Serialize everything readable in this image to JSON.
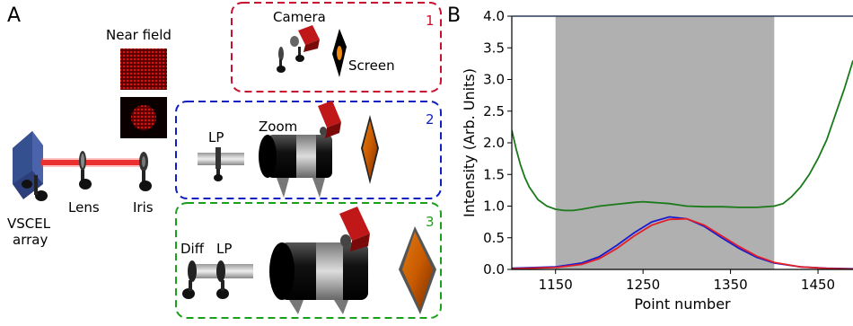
{
  "panel_a": {
    "label": "A",
    "near_field_title": "Near field",
    "labels": {
      "vscel_line1": "VSCEL",
      "vscel_line2": "array",
      "lens": "Lens",
      "iris": "Iris",
      "camera": "Camera",
      "screen": "Screen",
      "lp_top": "LP",
      "zoom": "Zoom",
      "diff": "Diff",
      "lp_bottom": "LP"
    },
    "setups": [
      {
        "number": "1",
        "color": "#c8102e"
      },
      {
        "number": "2",
        "color": "#1020c0"
      },
      {
        "number": "3",
        "color": "#1aa01a"
      }
    ]
  },
  "panel_b": {
    "label": "B"
  },
  "chart_data": {
    "type": "line",
    "xlabel": "Point number",
    "ylabel": "Intensity (Arb. Units)",
    "xlim": [
      1100,
      1490
    ],
    "ylim": [
      0,
      4.0
    ],
    "xticks": [
      "1150",
      "1250",
      "1350",
      "1450"
    ],
    "xtick_values": [
      1150,
      1250,
      1350,
      1450
    ],
    "yticks": [
      "0.0",
      "0.5",
      "1.0",
      "1.5",
      "2.0",
      "2.5",
      "3.0",
      "3.5",
      "4.0"
    ],
    "ytick_values": [
      0.0,
      0.5,
      1.0,
      1.5,
      2.0,
      2.5,
      3.0,
      3.5,
      4.0
    ],
    "shaded_region": {
      "x_start": 1150,
      "x_end": 1400,
      "color": "#b0b0b0"
    },
    "grid": false,
    "series": [
      {
        "color": "#1a7a1a",
        "x": [
          1100,
          1105,
          1110,
          1115,
          1120,
          1125,
          1130,
          1140,
          1150,
          1160,
          1170,
          1180,
          1200,
          1220,
          1240,
          1250,
          1260,
          1270,
          1280,
          1300,
          1320,
          1340,
          1360,
          1380,
          1400,
          1410,
          1420,
          1430,
          1440,
          1450,
          1460,
          1470,
          1480,
          1490
        ],
        "y": [
          2.2,
          1.9,
          1.65,
          1.45,
          1.3,
          1.2,
          1.1,
          1.0,
          0.95,
          0.93,
          0.93,
          0.95,
          1.0,
          1.03,
          1.06,
          1.07,
          1.06,
          1.05,
          1.04,
          1.0,
          0.99,
          0.99,
          0.98,
          0.98,
          1.0,
          1.04,
          1.15,
          1.3,
          1.5,
          1.75,
          2.05,
          2.45,
          2.85,
          3.3
        ]
      },
      {
        "color": "#1a1ad0",
        "x": [
          1100,
          1150,
          1180,
          1200,
          1220,
          1240,
          1260,
          1280,
          1300,
          1320,
          1340,
          1360,
          1380,
          1400,
          1430,
          1460,
          1490
        ],
        "y": [
          0.02,
          0.04,
          0.1,
          0.2,
          0.38,
          0.58,
          0.75,
          0.83,
          0.8,
          0.68,
          0.5,
          0.33,
          0.19,
          0.1,
          0.04,
          0.02,
          0.01
        ]
      },
      {
        "color": "#e0202a",
        "x": [
          1100,
          1150,
          1180,
          1200,
          1220,
          1240,
          1260,
          1280,
          1300,
          1320,
          1340,
          1360,
          1380,
          1400,
          1430,
          1460,
          1490
        ],
        "y": [
          0.01,
          0.03,
          0.08,
          0.17,
          0.33,
          0.53,
          0.7,
          0.79,
          0.8,
          0.7,
          0.53,
          0.36,
          0.21,
          0.11,
          0.04,
          0.015,
          0.005
        ]
      }
    ]
  }
}
